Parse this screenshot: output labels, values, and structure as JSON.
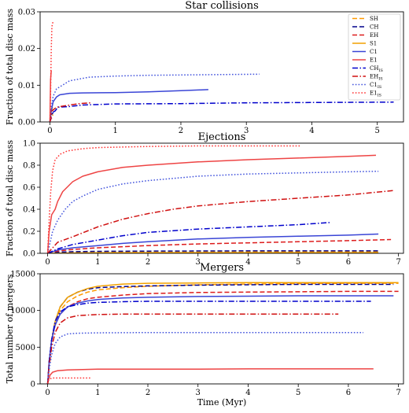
{
  "chart_data": [
    {
      "type": "line",
      "title": "Star collisions",
      "xlabel": "",
      "ylabel": "Fraction of total disc mass",
      "xlim": [
        -0.15,
        5.4
      ],
      "ylim": [
        0,
        0.03
      ],
      "xticks": [
        "0",
        "1",
        "2",
        "3",
        "4",
        "5"
      ],
      "yticks": [
        "0.00",
        "0.01",
        "0.02",
        "0.03"
      ],
      "legend_position": "top-right",
      "series": [
        {
          "name": "SH",
          "color": "#ff9900",
          "dash": "dashed",
          "x": [
            0,
            0.02,
            0.05
          ],
          "y": [
            0,
            0.0015,
            0.002
          ]
        },
        {
          "name": "CH",
          "color": "#00008b",
          "dash": "dashed",
          "x": [
            0,
            0.02,
            0.05
          ],
          "y": [
            0,
            0.002,
            0.0025
          ]
        },
        {
          "name": "EH",
          "color": "#dd1c1c",
          "dash": "dashed",
          "x": [
            0,
            0.02,
            0.05
          ],
          "y": [
            0,
            0.001,
            0.0015
          ]
        },
        {
          "name": "S1",
          "color": "#f2a100",
          "dash": "solid",
          "x": [
            0,
            0.02,
            0.04
          ],
          "y": [
            0,
            0.003,
            0.004
          ]
        },
        {
          "name": "C1",
          "color": "#3a45d6",
          "dash": "solid",
          "x": [
            0,
            0.02,
            0.05,
            0.1,
            0.15,
            0.3,
            0.5,
            1,
            1.5,
            2,
            2.42
          ],
          "y": [
            0,
            0.003,
            0.0055,
            0.0068,
            0.0074,
            0.0078,
            0.0079,
            0.008,
            0.0082,
            0.0085,
            0.0088
          ]
        },
        {
          "name": "E1",
          "color": "#ee4444",
          "dash": "solid",
          "x": [
            0,
            0.005,
            0.01,
            0.02
          ],
          "y": [
            0,
            0.006,
            0.0115,
            0.014
          ]
        },
        {
          "name": "CH_IS",
          "color": "#0000cc",
          "dash": "dashdot",
          "x": [
            0,
            0.03,
            0.08,
            0.12,
            0.3,
            0.5,
            1,
            2,
            3,
            4,
            5.25
          ],
          "y": [
            0,
            0.0025,
            0.003,
            0.004,
            0.0042,
            0.0046,
            0.0049,
            0.005,
            0.0052,
            0.0053,
            0.0054
          ]
        },
        {
          "name": "EH_IS",
          "color": "#d01010",
          "dash": "dashdot",
          "x": [
            0,
            0.03,
            0.1,
            0.3,
            0.45,
            0.62
          ],
          "y": [
            0,
            0.003,
            0.004,
            0.0046,
            0.005,
            0.0052
          ]
        },
        {
          "name": "C1_IS",
          "color": "#4455dd",
          "dash": "dotted",
          "x": [
            0,
            0.02,
            0.05,
            0.1,
            0.3,
            0.6,
            1,
            1.5,
            2,
            3.2
          ],
          "y": [
            0,
            0.004,
            0.007,
            0.009,
            0.0112,
            0.0122,
            0.0125,
            0.0127,
            0.0128,
            0.013
          ]
        },
        {
          "name": "E1_IS",
          "color": "#ff3333",
          "dash": "dotted",
          "x": [
            0,
            0.01,
            0.02,
            0.03,
            0.05
          ],
          "y": [
            0,
            0.008,
            0.02,
            0.026,
            0.0275
          ]
        }
      ]
    },
    {
      "type": "line",
      "title": "Ejections",
      "xlabel": "",
      "ylabel": "Fraction of total disc mass",
      "xlim": [
        -0.15,
        7.1
      ],
      "ylim": [
        0,
        1.0
      ],
      "xticks": [
        "0",
        "1",
        "2",
        "3",
        "4",
        "5",
        "6",
        "7"
      ],
      "yticks": [
        "0.0",
        "0.2",
        "0.4",
        "0.6",
        "0.8",
        "1.0"
      ],
      "series": [
        {
          "name": "SH",
          "color": "#ff9900",
          "dash": "dashed",
          "x": [
            0,
            0.5,
            1,
            2,
            4,
            6.6
          ],
          "y": [
            0,
            0.005,
            0.008,
            0.01,
            0.012,
            0.013
          ]
        },
        {
          "name": "CH",
          "color": "#00008b",
          "dash": "dashed",
          "x": [
            0,
            0.2,
            0.5,
            1,
            2,
            4,
            6.6
          ],
          "y": [
            0,
            0.01,
            0.015,
            0.018,
            0.02,
            0.022,
            0.022
          ]
        },
        {
          "name": "EH",
          "color": "#dd1c1c",
          "dash": "dashed",
          "x": [
            0,
            0.2,
            0.5,
            1,
            2,
            3,
            4,
            5,
            6,
            6.85
          ],
          "y": [
            0,
            0.02,
            0.035,
            0.05,
            0.07,
            0.085,
            0.095,
            0.105,
            0.115,
            0.125
          ]
        },
        {
          "name": "S1",
          "color": "#f2a100",
          "dash": "solid",
          "x": [
            0,
            0.5,
            1,
            3,
            6.6
          ],
          "y": [
            0,
            0.003,
            0.004,
            0.005,
            0.005
          ]
        },
        {
          "name": "C1",
          "color": "#3a45d6",
          "dash": "solid",
          "x": [
            0,
            0.2,
            0.5,
            1,
            1.5,
            2,
            3,
            4,
            5,
            6,
            6.6
          ],
          "y": [
            0,
            0.03,
            0.05,
            0.07,
            0.09,
            0.105,
            0.13,
            0.145,
            0.155,
            0.165,
            0.175
          ]
        },
        {
          "name": "E1",
          "color": "#ee4444",
          "dash": "solid",
          "x": [
            0,
            0.03,
            0.08,
            0.15,
            0.2,
            0.3,
            0.5,
            0.7,
            1,
            1.5,
            2,
            3,
            4,
            5,
            6,
            6.55
          ],
          "y": [
            0,
            0.2,
            0.35,
            0.4,
            0.47,
            0.56,
            0.65,
            0.7,
            0.74,
            0.78,
            0.8,
            0.83,
            0.85,
            0.865,
            0.88,
            0.89
          ]
        },
        {
          "name": "CH_IS",
          "color": "#0000cc",
          "dash": "dashdot",
          "x": [
            0,
            0.2,
            0.5,
            1,
            1.5,
            2,
            3,
            4,
            5,
            5.65
          ],
          "y": [
            0,
            0.04,
            0.08,
            0.12,
            0.16,
            0.19,
            0.22,
            0.24,
            0.26,
            0.28
          ]
        },
        {
          "name": "EH_IS",
          "color": "#d01010",
          "dash": "dashdot",
          "x": [
            0,
            0.2,
            0.5,
            1,
            1.5,
            2,
            2.5,
            3,
            4,
            5,
            6,
            6.9
          ],
          "y": [
            0,
            0.1,
            0.15,
            0.24,
            0.31,
            0.36,
            0.4,
            0.43,
            0.47,
            0.5,
            0.53,
            0.57
          ]
        },
        {
          "name": "C1_IS",
          "color": "#4455dd",
          "dash": "dotted",
          "x": [
            0,
            0.1,
            0.2,
            0.35,
            0.5,
            0.7,
            1,
            1.5,
            2,
            3,
            4,
            5,
            6,
            6.6
          ],
          "y": [
            0,
            0.2,
            0.3,
            0.4,
            0.47,
            0.52,
            0.58,
            0.63,
            0.66,
            0.7,
            0.72,
            0.73,
            0.74,
            0.745
          ]
        },
        {
          "name": "E1_IS",
          "color": "#ff3333",
          "dash": "dotted",
          "x": [
            0,
            0.03,
            0.06,
            0.1,
            0.15,
            0.25,
            0.4,
            0.7,
            1,
            2,
            3,
            4,
            5.05
          ],
          "y": [
            0,
            0.3,
            0.55,
            0.75,
            0.85,
            0.9,
            0.93,
            0.95,
            0.96,
            0.97,
            0.975,
            0.975,
            0.975
          ]
        }
      ]
    },
    {
      "type": "line",
      "title": "Mergers",
      "xlabel": "Time (Myr)",
      "ylabel": "Total number of mergers",
      "xlim": [
        -0.15,
        7.1
      ],
      "ylim": [
        0,
        15000
      ],
      "xticks": [
        "0",
        "1",
        "2",
        "3",
        "4",
        "5",
        "6",
        "7"
      ],
      "yticks": [
        "0",
        "5000",
        "10000",
        "15000"
      ],
      "series": [
        {
          "name": "SH",
          "color": "#ff9900",
          "dash": "dashed",
          "x": [
            0,
            0.03,
            0.08,
            0.15,
            0.25,
            0.4,
            0.6,
            0.8,
            1,
            1.5,
            2,
            3,
            4,
            5,
            6,
            7
          ],
          "y": [
            0,
            3000,
            6000,
            8500,
            10000,
            11200,
            12000,
            12500,
            12800,
            13100,
            13300,
            13500,
            13600,
            13650,
            13700,
            13700
          ]
        },
        {
          "name": "CH",
          "color": "#00008b",
          "dash": "dashed",
          "x": [
            0,
            0.03,
            0.08,
            0.15,
            0.25,
            0.4,
            0.6,
            0.8,
            1,
            1.5,
            2,
            3,
            4,
            5,
            6,
            6.9
          ],
          "y": [
            0,
            3000,
            6000,
            8500,
            10500,
            11800,
            12500,
            12900,
            13100,
            13250,
            13350,
            13450,
            13500,
            13550,
            13550,
            13550
          ]
        },
        {
          "name": "EH",
          "color": "#dd1c1c",
          "dash": "dashed",
          "x": [
            0,
            0.03,
            0.08,
            0.15,
            0.25,
            0.4,
            0.6,
            0.8,
            1,
            1.5,
            2,
            3,
            4,
            5,
            6,
            7
          ],
          "y": [
            0,
            3000,
            6000,
            8000,
            9500,
            10500,
            11200,
            11600,
            11800,
            12100,
            12300,
            12450,
            12500,
            12550,
            12600,
            12600
          ]
        },
        {
          "name": "S1",
          "color": "#f2a100",
          "dash": "solid",
          "x": [
            0,
            0.03,
            0.08,
            0.15,
            0.25,
            0.4,
            0.6,
            0.8,
            1,
            1.5,
            2,
            3,
            4,
            5,
            6,
            7
          ],
          "y": [
            0,
            3000,
            6000,
            8500,
            10500,
            11800,
            12500,
            13000,
            13300,
            13600,
            13700,
            13750,
            13800,
            13800,
            13800,
            13800
          ]
        },
        {
          "name": "C1",
          "color": "#3a45d6",
          "dash": "solid",
          "x": [
            0,
            0.03,
            0.08,
            0.15,
            0.25,
            0.4,
            0.6,
            0.8,
            1,
            1.5,
            2,
            3,
            4,
            5,
            6,
            6.9
          ],
          "y": [
            0,
            3000,
            6000,
            8000,
            9500,
            10500,
            11000,
            11300,
            11500,
            11700,
            11800,
            11900,
            11950,
            12000,
            12000,
            12000
          ]
        },
        {
          "name": "E1",
          "color": "#ee4444",
          "dash": "solid",
          "x": [
            0,
            0.02,
            0.05,
            0.1,
            0.2,
            0.4,
            0.7,
            1,
            2,
            3,
            4,
            5,
            6,
            6.5
          ],
          "y": [
            0,
            600,
            1200,
            1600,
            1800,
            1900,
            1950,
            2000,
            2000,
            2000,
            2050,
            2050,
            2050,
            2050
          ]
        },
        {
          "name": "CH_IS",
          "color": "#0000cc",
          "dash": "dashdot",
          "x": [
            0,
            0.03,
            0.08,
            0.15,
            0.25,
            0.4,
            0.6,
            0.8,
            1,
            1.5,
            2,
            3,
            4,
            5,
            6,
            6.45
          ],
          "y": [
            0,
            3000,
            6000,
            8500,
            9800,
            10500,
            10800,
            11000,
            11100,
            11200,
            11250,
            11250,
            11250,
            11250,
            11250,
            11250
          ]
        },
        {
          "name": "EH_IS",
          "color": "#d01010",
          "dash": "dashdot",
          "x": [
            0,
            0.03,
            0.08,
            0.15,
            0.25,
            0.4,
            0.6,
            1,
            1.5,
            2,
            3,
            4,
            5,
            5.8
          ],
          "y": [
            0,
            2500,
            5000,
            7000,
            8300,
            9000,
            9300,
            9450,
            9500,
            9500,
            9500,
            9500,
            9500,
            9500
          ]
        },
        {
          "name": "C1_IS",
          "color": "#4455dd",
          "dash": "dotted",
          "x": [
            0,
            0.03,
            0.08,
            0.15,
            0.25,
            0.4,
            0.6,
            1,
            2,
            3,
            4,
            5,
            6.3
          ],
          "y": [
            0,
            2000,
            4000,
            5500,
            6400,
            6800,
            6900,
            6950,
            7000,
            7000,
            7000,
            7000,
            7000
          ]
        },
        {
          "name": "E1_IS",
          "color": "#ff3333",
          "dash": "dotted",
          "x": [
            0,
            0.02,
            0.05,
            0.1,
            0.3,
            0.5,
            0.85
          ],
          "y": [
            0,
            500,
            700,
            800,
            800,
            800,
            800
          ]
        }
      ]
    }
  ]
}
